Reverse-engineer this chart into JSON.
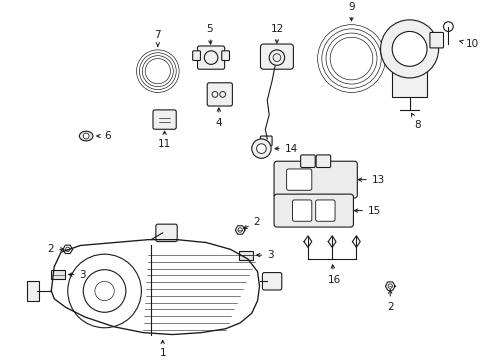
{
  "background_color": "#ffffff",
  "line_color": "#1a1a1a",
  "lw": 0.8,
  "fig_w": 4.89,
  "fig_h": 3.6,
  "dpi": 100,
  "label_fontsize": 7.5,
  "arrow_lw": 0.7,
  "arrow_ms": 6
}
